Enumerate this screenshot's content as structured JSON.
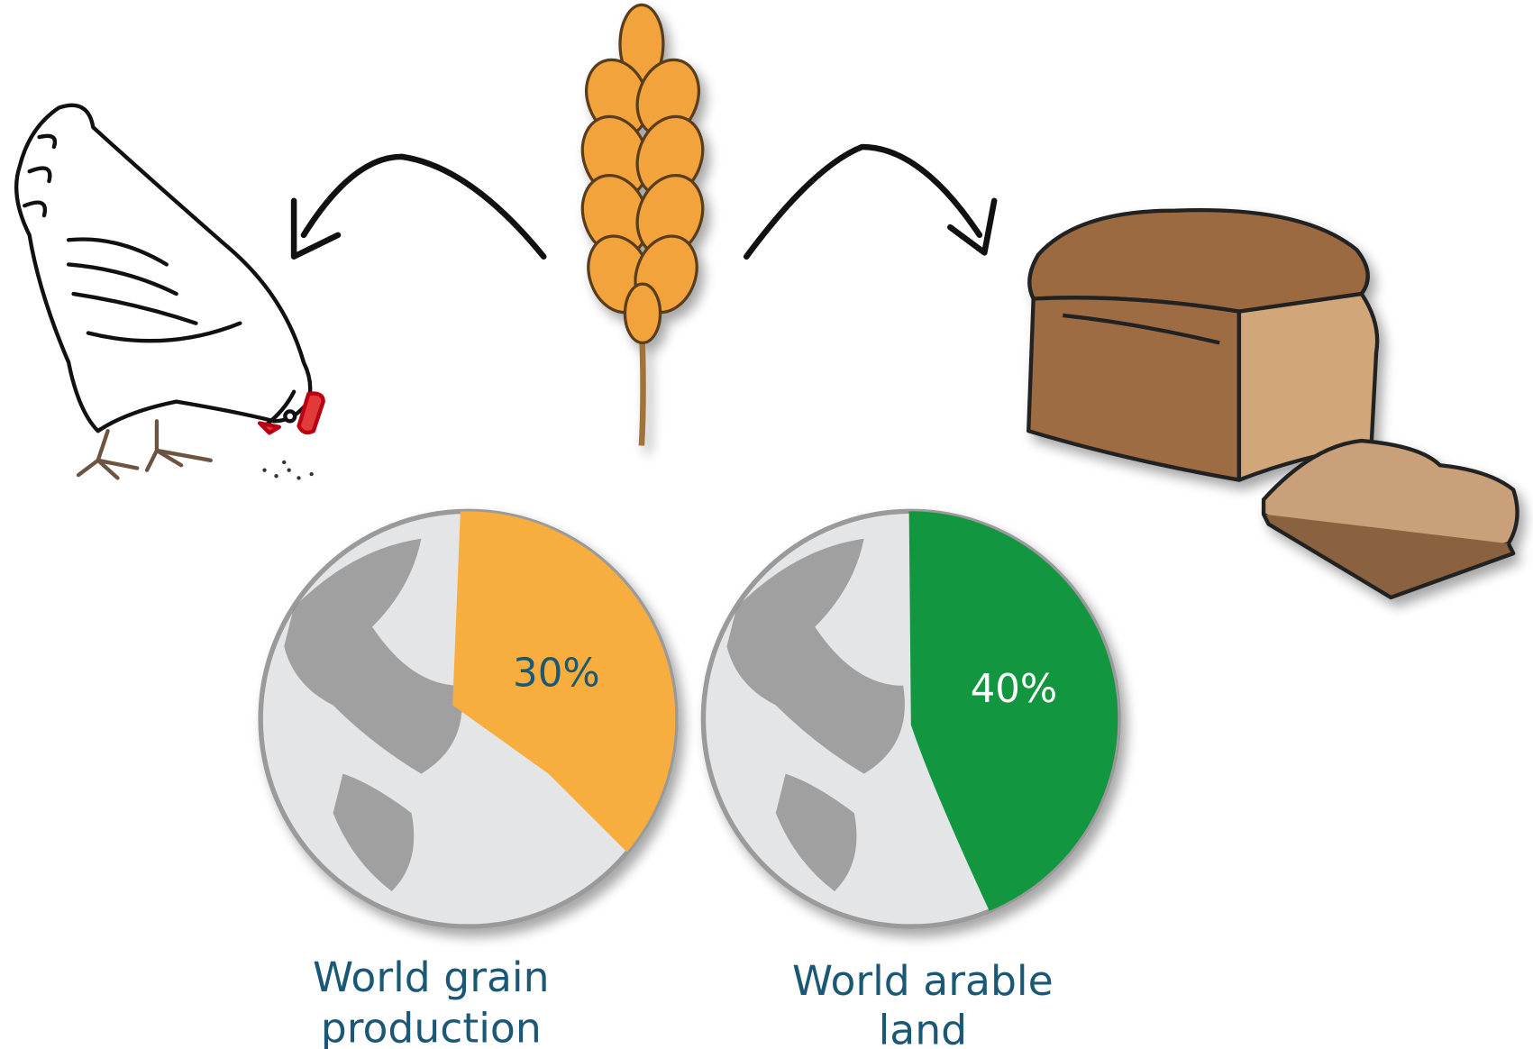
{
  "globes": [
    {
      "value_label": "30%",
      "caption": [
        "World grain",
        "production"
      ]
    },
    {
      "value_label": "40%",
      "caption": [
        "World arable",
        "land"
      ]
    }
  ]
}
